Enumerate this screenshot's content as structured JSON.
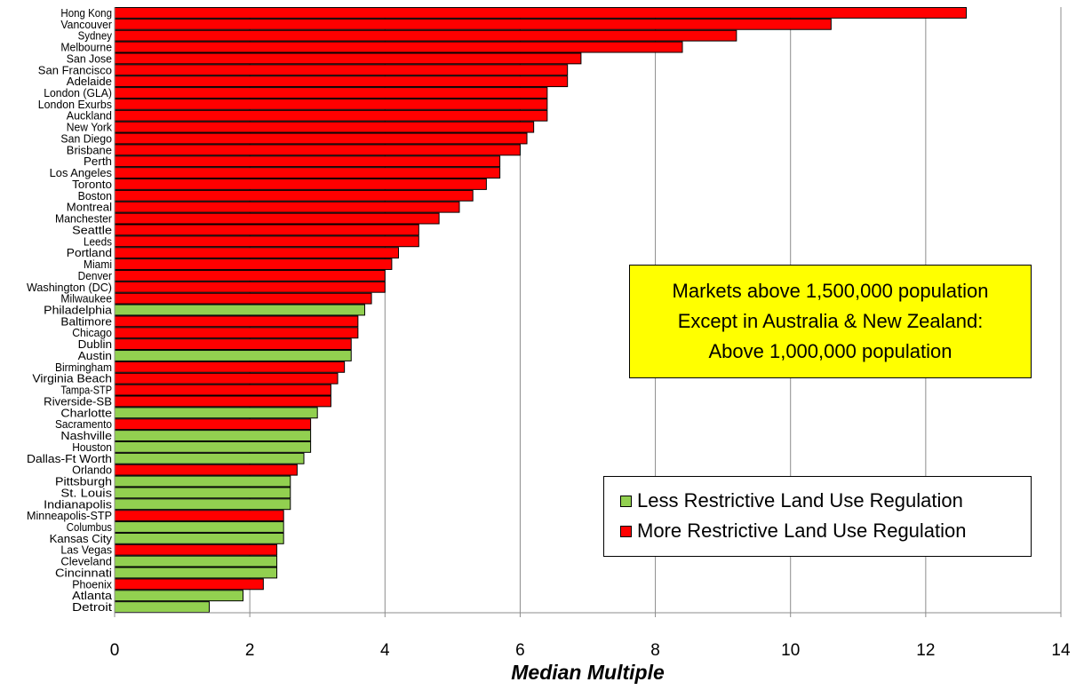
{
  "chart_data": {
    "type": "bar",
    "orientation": "horizontal",
    "xlabel": "Median Multiple",
    "xlim": [
      0,
      14
    ],
    "xticks": [
      0,
      2,
      4,
      6,
      8,
      10,
      12,
      14
    ],
    "grid": true,
    "colors": {
      "less": "#92d050",
      "more": "#ff0000"
    },
    "categories": [
      "Hong Kong",
      "Vancouver",
      "Sydney",
      "Melbourne",
      "San Jose",
      "San Francisco",
      "Adelaide",
      "London (GLA)",
      "London Exurbs",
      "Auckland",
      "New York",
      "San Diego",
      "Brisbane",
      "Perth",
      "Los Angeles",
      "Toronto",
      "Boston",
      "Montreal",
      "Manchester",
      "Seattle",
      "Leeds",
      "Portland",
      "Miami",
      "Denver",
      "Washington (DC)",
      "Milwaukee",
      "Philadelphia",
      "Baltimore",
      "Chicago",
      "Dublin",
      "Austin",
      "Birmingham",
      "Virginia Beach",
      "Tampa-STP",
      "Riverside-SB",
      "Charlotte",
      "Sacramento",
      "Nashville",
      "Houston",
      "Dallas-Ft Worth",
      "Orlando",
      "Pittsburgh",
      "St. Louis",
      "Indianapolis",
      "Minneapolis-STP",
      "Columbus",
      "Kansas City",
      "Las Vegas",
      "Cleveland",
      "Cincinnati",
      "Phoenix",
      "Atlanta",
      "Detroit"
    ],
    "values": [
      12.6,
      10.6,
      9.2,
      8.4,
      6.9,
      6.7,
      6.7,
      6.4,
      6.4,
      6.4,
      6.2,
      6.1,
      6.0,
      5.7,
      5.7,
      5.5,
      5.3,
      5.1,
      4.8,
      4.5,
      4.5,
      4.2,
      4.1,
      4.0,
      4.0,
      3.8,
      3.7,
      3.6,
      3.6,
      3.5,
      3.5,
      3.4,
      3.3,
      3.2,
      3.2,
      3.0,
      2.9,
      2.9,
      2.9,
      2.8,
      2.7,
      2.6,
      2.6,
      2.6,
      2.5,
      2.5,
      2.5,
      2.4,
      2.4,
      2.4,
      2.2,
      1.9,
      1.4
    ],
    "groups": [
      "more",
      "more",
      "more",
      "more",
      "more",
      "more",
      "more",
      "more",
      "more",
      "more",
      "more",
      "more",
      "more",
      "more",
      "more",
      "more",
      "more",
      "more",
      "more",
      "more",
      "more",
      "more",
      "more",
      "more",
      "more",
      "more",
      "less",
      "more",
      "more",
      "more",
      "less",
      "more",
      "more",
      "more",
      "more",
      "less",
      "more",
      "less",
      "less",
      "less",
      "more",
      "less",
      "less",
      "less",
      "more",
      "less",
      "less",
      "more",
      "less",
      "less",
      "more",
      "less",
      "less"
    ],
    "legend": {
      "placement": "bottom-right",
      "entries": [
        {
          "key": "less",
          "label": "Less Restrictive Land Use Regulation"
        },
        {
          "key": "more",
          "label": "More Restrictive Land Use Regulation"
        }
      ]
    },
    "annotation": {
      "lines": [
        "Markets above 1,500,000 population",
        "Except in Australia & New Zealand:",
        "Above 1,000,000 population"
      ],
      "color": "#ffff00"
    }
  }
}
